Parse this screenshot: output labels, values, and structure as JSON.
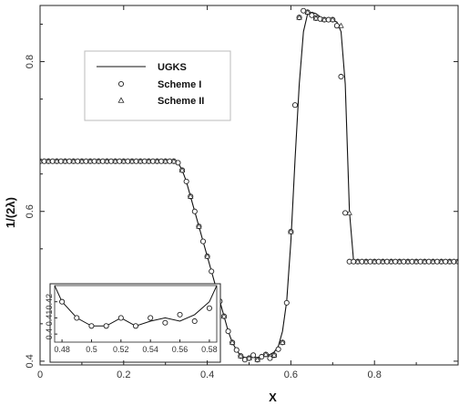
{
  "chart_data": {
    "type": "line",
    "xlabel": "X",
    "ylabel": "1/(2λ)",
    "xlim": [
      0,
      1.0
    ],
    "ylim": [
      0.395,
      0.875
    ],
    "xticks": [
      0,
      0.2,
      0.4,
      0.6,
      0.8
    ],
    "xtick_labels": [
      "0",
      "0.2",
      "0.4",
      "0.6",
      "0.8"
    ],
    "yticks": [
      0.4,
      0.6,
      0.8
    ],
    "ytick_labels": [
      "0.4",
      "0.6",
      "0.8"
    ],
    "grid": false,
    "legend_position": "upper-left",
    "series": [
      {
        "name": "UGKS",
        "style": "line",
        "x": [
          0,
          0.32,
          0.33,
          0.34,
          0.35,
          0.36,
          0.37,
          0.38,
          0.39,
          0.4,
          0.41,
          0.42,
          0.43,
          0.44,
          0.45,
          0.46,
          0.47,
          0.48,
          0.49,
          0.5,
          0.51,
          0.52,
          0.53,
          0.54,
          0.55,
          0.56,
          0.57,
          0.58,
          0.59,
          0.6,
          0.61,
          0.62,
          0.63,
          0.64,
          0.65,
          0.66,
          0.67,
          0.68,
          0.69,
          0.7,
          0.71,
          0.72,
          0.73,
          0.74,
          0.75,
          1.0
        ],
        "y": [
          0.667,
          0.667,
          0.665,
          0.655,
          0.64,
          0.62,
          0.6,
          0.58,
          0.56,
          0.54,
          0.52,
          0.5,
          0.48,
          0.46,
          0.44,
          0.425,
          0.415,
          0.407,
          0.405,
          0.405,
          0.405,
          0.405,
          0.406,
          0.407,
          0.409,
          0.412,
          0.42,
          0.44,
          0.48,
          0.56,
          0.67,
          0.77,
          0.84,
          0.864,
          0.866,
          0.864,
          0.86,
          0.857,
          0.856,
          0.855,
          0.853,
          0.84,
          0.77,
          0.6,
          0.533,
          0.533
        ]
      },
      {
        "name": "Scheme I",
        "style": "circle",
        "x": [
          0,
          0.01,
          0.02,
          0.03,
          0.04,
          0.05,
          0.06,
          0.07,
          0.08,
          0.09,
          0.1,
          0.11,
          0.12,
          0.13,
          0.14,
          0.15,
          0.16,
          0.17,
          0.18,
          0.19,
          0.2,
          0.21,
          0.22,
          0.23,
          0.24,
          0.25,
          0.26,
          0.27,
          0.28,
          0.29,
          0.3,
          0.31,
          0.32,
          0.33,
          0.34,
          0.35,
          0.36,
          0.37,
          0.38,
          0.39,
          0.4,
          0.41,
          0.42,
          0.43,
          0.44,
          0.45,
          0.46,
          0.47,
          0.48,
          0.49,
          0.5,
          0.51,
          0.52,
          0.53,
          0.54,
          0.55,
          0.56,
          0.57,
          0.58,
          0.59,
          0.6,
          0.61,
          0.62,
          0.63,
          0.64,
          0.65,
          0.66,
          0.67,
          0.68,
          0.69,
          0.7,
          0.71,
          0.72,
          0.73,
          0.74,
          0.75,
          0.76,
          0.77,
          0.78,
          0.79,
          0.8,
          0.81,
          0.82,
          0.83,
          0.84,
          0.85,
          0.86,
          0.87,
          0.88,
          0.89,
          0.9,
          0.91,
          0.92,
          0.93,
          0.94,
          0.95,
          0.96,
          0.97,
          0.98,
          0.99,
          1.0
        ],
        "y": [
          0.667,
          0.667,
          0.667,
          0.667,
          0.667,
          0.667,
          0.667,
          0.667,
          0.667,
          0.667,
          0.667,
          0.667,
          0.667,
          0.667,
          0.667,
          0.667,
          0.667,
          0.667,
          0.667,
          0.667,
          0.667,
          0.667,
          0.667,
          0.667,
          0.667,
          0.667,
          0.667,
          0.667,
          0.667,
          0.667,
          0.667,
          0.667,
          0.667,
          0.665,
          0.655,
          0.64,
          0.62,
          0.6,
          0.58,
          0.56,
          0.54,
          0.52,
          0.5,
          0.48,
          0.46,
          0.44,
          0.425,
          0.415,
          0.407,
          0.402,
          0.404,
          0.408,
          0.402,
          0.406,
          0.409,
          0.404,
          0.408,
          0.416,
          0.425,
          0.478,
          0.573,
          0.742,
          0.859,
          0.868,
          0.866,
          0.862,
          0.858,
          0.857,
          0.856,
          0.856,
          0.856,
          0.848,
          0.78,
          0.598,
          0.533,
          0.533,
          0.533,
          0.533,
          0.533,
          0.533,
          0.533,
          0.533,
          0.533,
          0.533,
          0.533,
          0.533,
          0.533,
          0.533,
          0.533,
          0.533,
          0.533,
          0.533,
          0.533,
          0.533,
          0.533,
          0.533,
          0.533,
          0.533,
          0.533,
          0.533,
          0.533
        ]
      },
      {
        "name": "Scheme II",
        "style": "triangle",
        "x": [
          0,
          0.02,
          0.04,
          0.06,
          0.08,
          0.1,
          0.12,
          0.14,
          0.16,
          0.18,
          0.2,
          0.22,
          0.24,
          0.26,
          0.28,
          0.3,
          0.32,
          0.34,
          0.36,
          0.38,
          0.4,
          0.42,
          0.44,
          0.46,
          0.48,
          0.5,
          0.52,
          0.54,
          0.56,
          0.58,
          0.6,
          0.62,
          0.64,
          0.66,
          0.68,
          0.7,
          0.72,
          0.74,
          0.76,
          0.78,
          0.8,
          0.82,
          0.84,
          0.86,
          0.88,
          0.9,
          0.92,
          0.94,
          0.96,
          0.98,
          1.0
        ],
        "y": [
          0.667,
          0.667,
          0.667,
          0.667,
          0.667,
          0.667,
          0.667,
          0.667,
          0.667,
          0.667,
          0.667,
          0.667,
          0.667,
          0.667,
          0.667,
          0.667,
          0.667,
          0.655,
          0.62,
          0.58,
          0.54,
          0.5,
          0.46,
          0.425,
          0.407,
          0.404,
          0.402,
          0.409,
          0.408,
          0.425,
          0.573,
          0.859,
          0.866,
          0.858,
          0.856,
          0.856,
          0.848,
          0.598,
          0.533,
          0.533,
          0.533,
          0.533,
          0.533,
          0.533,
          0.533,
          0.533,
          0.533,
          0.533,
          0.533,
          0.533,
          0.533
        ]
      }
    ],
    "inset": {
      "xlim": [
        0.475,
        0.585
      ],
      "ylim": [
        0.395,
        0.43
      ],
      "xticks": [
        0.48,
        0.5,
        0.52,
        0.54,
        0.56,
        0.58
      ],
      "xtick_labels": [
        "0.48",
        "0.5",
        "0.52",
        "0.54",
        "0.56",
        "0.58"
      ],
      "yticks": [
        0.4,
        0.41,
        0.42
      ],
      "ytick_labels": [
        "0.4",
        "0.41",
        "0.42"
      ],
      "line_x": [
        0.475,
        0.48,
        0.49,
        0.5,
        0.51,
        0.52,
        0.53,
        0.54,
        0.55,
        0.56,
        0.57,
        0.58,
        0.585
      ],
      "line_y": [
        0.43,
        0.42,
        0.41,
        0.405,
        0.405,
        0.41,
        0.405,
        0.408,
        0.41,
        0.408,
        0.412,
        0.42,
        0.43
      ],
      "points_x": [
        0.48,
        0.49,
        0.5,
        0.51,
        0.52,
        0.53,
        0.54,
        0.55,
        0.56,
        0.57,
        0.58
      ],
      "points_y": [
        0.42,
        0.41,
        0.405,
        0.405,
        0.41,
        0.405,
        0.41,
        0.407,
        0.412,
        0.408,
        0.416
      ]
    }
  }
}
